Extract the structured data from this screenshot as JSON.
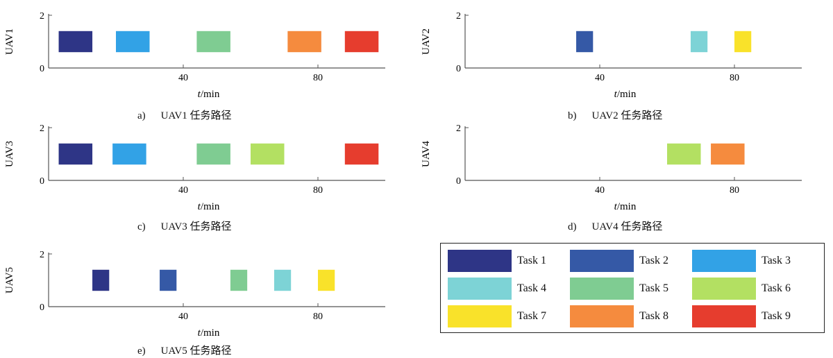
{
  "tasks": [
    {
      "id": 1,
      "name": "Task 1",
      "color": "#2e3586"
    },
    {
      "id": 2,
      "name": "Task 2",
      "color": "#3559a6"
    },
    {
      "id": 3,
      "name": "Task 3",
      "color": "#32a2e6"
    },
    {
      "id": 4,
      "name": "Task 4",
      "color": "#7dd3d6"
    },
    {
      "id": 5,
      "name": "Task 5",
      "color": "#7fcc92"
    },
    {
      "id": 6,
      "name": "Task 6",
      "color": "#b3e062"
    },
    {
      "id": 7,
      "name": "Task 7",
      "color": "#f9e22a"
    },
    {
      "id": 8,
      "name": "Task 8",
      "color": "#f58b3e"
    },
    {
      "id": 9,
      "name": "Task 9",
      "color": "#e63d2e"
    }
  ],
  "chart_data": [
    {
      "type": "gantt",
      "ylabel": "UAV1",
      "xlabel": "min",
      "xlabel_italic": "t",
      "xticks": [
        40,
        80
      ],
      "yticks": [
        0,
        2
      ],
      "xlim": [
        0,
        100
      ],
      "ylim": [
        0,
        2
      ],
      "caption": {
        "letter": "a)",
        "text": "UAV1 任务路径"
      },
      "bars": [
        {
          "task": 1,
          "start": 3,
          "end": 13
        },
        {
          "task": 3,
          "start": 20,
          "end": 30
        },
        {
          "task": 5,
          "start": 44,
          "end": 54
        },
        {
          "task": 8,
          "start": 71,
          "end": 81
        },
        {
          "task": 9,
          "start": 88,
          "end": 98
        }
      ]
    },
    {
      "type": "gantt",
      "ylabel": "UAV2",
      "xlabel": "min",
      "xlabel_italic": "t",
      "xticks": [
        40,
        80
      ],
      "yticks": [
        0,
        2
      ],
      "xlim": [
        0,
        100
      ],
      "ylim": [
        0,
        2
      ],
      "caption": {
        "letter": "b)",
        "text": "UAV2 任务路径"
      },
      "bars": [
        {
          "task": 2,
          "start": 33,
          "end": 38
        },
        {
          "task": 4,
          "start": 67,
          "end": 72
        },
        {
          "task": 7,
          "start": 80,
          "end": 85
        }
      ]
    },
    {
      "type": "gantt",
      "ylabel": "UAV3",
      "xlabel": "min",
      "xlabel_italic": "t",
      "xticks": [
        40,
        80
      ],
      "yticks": [
        0,
        2
      ],
      "xlim": [
        0,
        100
      ],
      "ylim": [
        0,
        2
      ],
      "caption": {
        "letter": "c)",
        "text": "UAV3 任务路径"
      },
      "bars": [
        {
          "task": 1,
          "start": 3,
          "end": 13
        },
        {
          "task": 3,
          "start": 19,
          "end": 29
        },
        {
          "task": 5,
          "start": 44,
          "end": 54
        },
        {
          "task": 6,
          "start": 60,
          "end": 70
        },
        {
          "task": 9,
          "start": 88,
          "end": 98
        }
      ]
    },
    {
      "type": "gantt",
      "ylabel": "UAV4",
      "xlabel": "min",
      "xlabel_italic": "t",
      "xticks": [
        40,
        80
      ],
      "yticks": [
        0,
        2
      ],
      "xlim": [
        0,
        100
      ],
      "ylim": [
        0,
        2
      ],
      "caption": {
        "letter": "d)",
        "text": "UAV4 任务路径"
      },
      "bars": [
        {
          "task": 6,
          "start": 60,
          "end": 70
        },
        {
          "task": 8,
          "start": 73,
          "end": 83
        }
      ]
    },
    {
      "type": "gantt",
      "ylabel": "UAV5",
      "xlabel": "min",
      "xlabel_italic": "t",
      "xticks": [
        40,
        80
      ],
      "yticks": [
        0,
        2
      ],
      "xlim": [
        0,
        100
      ],
      "ylim": [
        0,
        2
      ],
      "caption": {
        "letter": "e)",
        "text": "UAV5 任务路径"
      },
      "bars": [
        {
          "task": 1,
          "start": 13,
          "end": 18
        },
        {
          "task": 2,
          "start": 33,
          "end": 38
        },
        {
          "task": 5,
          "start": 54,
          "end": 59
        },
        {
          "task": 4,
          "start": 67,
          "end": 72
        },
        {
          "task": 7,
          "start": 80,
          "end": 85
        }
      ]
    }
  ]
}
